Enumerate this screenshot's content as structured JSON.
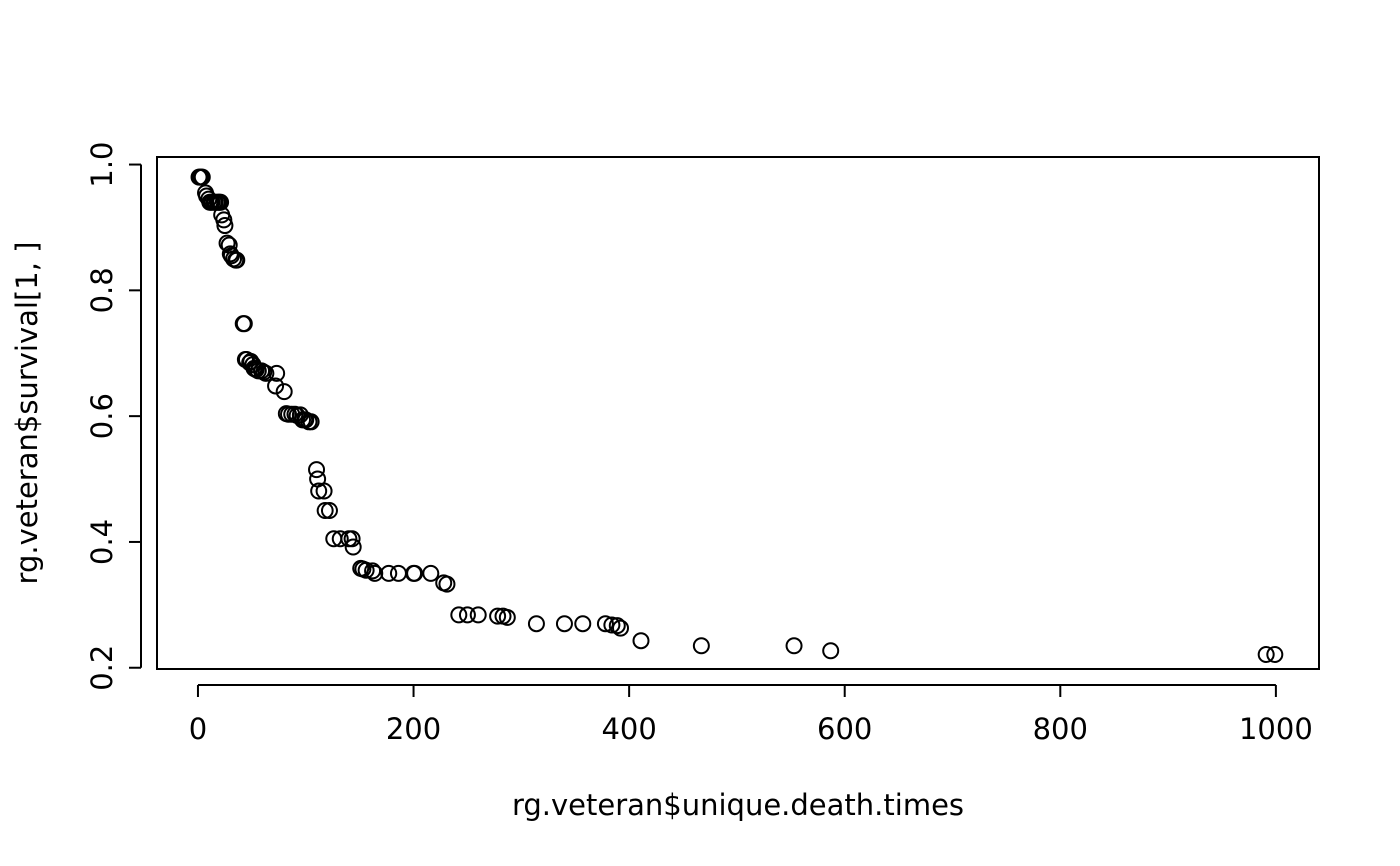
{
  "chart_data": {
    "type": "scatter",
    "title": "",
    "xlabel": "rg.veteran$unique.death.times",
    "ylabel": "rg.veteran$survival[1, ]",
    "xlim": [
      -38,
      1040
    ],
    "ylim": [
      0.198,
      1.012
    ],
    "xticks": [
      0,
      200,
      400,
      600,
      800,
      1000
    ],
    "xtick_labels": [
      "0",
      "200",
      "400",
      "600",
      "800",
      "1000"
    ],
    "yticks": [
      0.2,
      0.4,
      0.6,
      0.8,
      1.0
    ],
    "ytick_labels": [
      "0.2",
      "0.4",
      "0.6",
      "0.8",
      "1.0"
    ],
    "grid": false,
    "marker": "open-circle",
    "colors": {
      "points": "#000000",
      "axes": "#000000",
      "background": "#ffffff"
    },
    "series": [
      {
        "name": "survival",
        "x": [
          1,
          2,
          3,
          4,
          7,
          8,
          10,
          11,
          12,
          13,
          15,
          16,
          18,
          19,
          20,
          21,
          22,
          24,
          25,
          27,
          29,
          30,
          31,
          33,
          35,
          36,
          42,
          43,
          44,
          45,
          48,
          49,
          51,
          52,
          53,
          54,
          56,
          59,
          61,
          63,
          72,
          73,
          80,
          82,
          84,
          87,
          90,
          92,
          95,
          97,
          99,
          100,
          103,
          105,
          110,
          111,
          112,
          117,
          118,
          122,
          126,
          132,
          140,
          143,
          144,
          151,
          153,
          156,
          162,
          164,
          177,
          186,
          200,
          201,
          216,
          228,
          231,
          242,
          250,
          260,
          278,
          283,
          287,
          314,
          340,
          357,
          378,
          384,
          389,
          392,
          411,
          467,
          553,
          587,
          991,
          999
        ],
        "y": [
          0.98,
          0.98,
          0.98,
          0.98,
          0.955,
          0.95,
          0.945,
          0.94,
          0.94,
          0.94,
          0.94,
          0.94,
          0.94,
          0.94,
          0.94,
          0.94,
          0.92,
          0.912,
          0.903,
          0.875,
          0.872,
          0.858,
          0.855,
          0.85,
          0.848,
          0.848,
          0.747,
          0.747,
          0.69,
          0.69,
          0.685,
          0.687,
          0.682,
          0.676,
          0.675,
          0.674,
          0.672,
          0.672,
          0.67,
          0.668,
          0.648,
          0.668,
          0.639,
          0.604,
          0.603,
          0.603,
          0.603,
          0.601,
          0.602,
          0.594,
          0.594,
          0.594,
          0.591,
          0.591,
          0.515,
          0.5,
          0.481,
          0.481,
          0.45,
          0.45,
          0.405,
          0.405,
          0.405,
          0.405,
          0.392,
          0.358,
          0.357,
          0.355,
          0.354,
          0.35,
          0.35,
          0.35,
          0.35,
          0.35,
          0.35,
          0.335,
          0.333,
          0.284,
          0.284,
          0.284,
          0.282,
          0.282,
          0.28,
          0.27,
          0.27,
          0.27,
          0.27,
          0.268,
          0.267,
          0.263,
          0.243,
          0.235,
          0.235,
          0.227,
          0.221,
          0.221
        ]
      }
    ]
  }
}
